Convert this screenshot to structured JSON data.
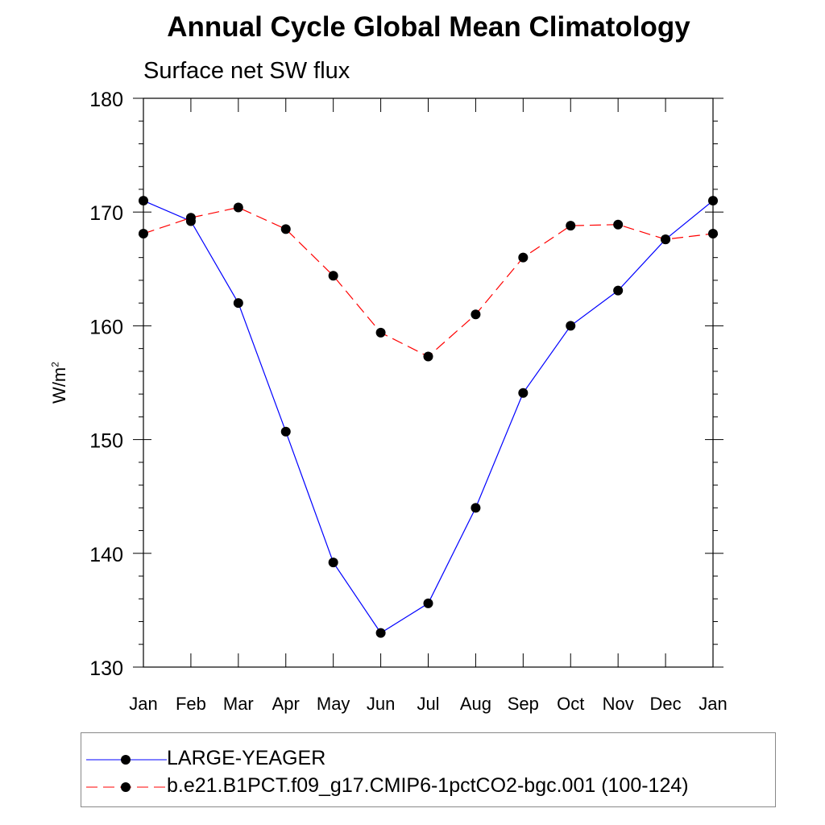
{
  "header": {
    "title": "Annual Cycle Global Mean Climatology",
    "subtitle": "Surface net SW flux"
  },
  "chart_data": {
    "type": "line",
    "title": "Annual Cycle Global Mean Climatology",
    "subtitle": "Surface net SW flux",
    "xlabel": "",
    "ylabel": "W/m²",
    "ylabel_base": "W/m",
    "ylabel_sup": "2",
    "categories": [
      "Jan",
      "Feb",
      "Mar",
      "Apr",
      "May",
      "Jun",
      "Jul",
      "Aug",
      "Sep",
      "Oct",
      "Nov",
      "Dec",
      "Jan"
    ],
    "ylim": [
      130,
      180
    ],
    "yticks": [
      130,
      140,
      150,
      160,
      170,
      180
    ],
    "legend_position": "bottom",
    "grid": false,
    "series": [
      {
        "name": "LARGE-YEAGER",
        "color": "#0000ff",
        "line_style": "solid",
        "marker": "filled-circle",
        "values": [
          171.0,
          169.2,
          162.0,
          150.7,
          139.2,
          133.0,
          135.6,
          144.0,
          154.1,
          160.0,
          163.1,
          167.6,
          171.0
        ]
      },
      {
        "name": "b.e21.B1PCT.f09_g17.CMIP6-1pctCO2-bgc.001 (100-124)",
        "color": "#ff0000",
        "line_style": "dashed",
        "marker": "filled-circle",
        "values": [
          168.1,
          169.5,
          170.4,
          168.5,
          164.4,
          159.4,
          157.3,
          161.0,
          166.0,
          168.8,
          168.9,
          167.6,
          168.1
        ]
      }
    ]
  }
}
